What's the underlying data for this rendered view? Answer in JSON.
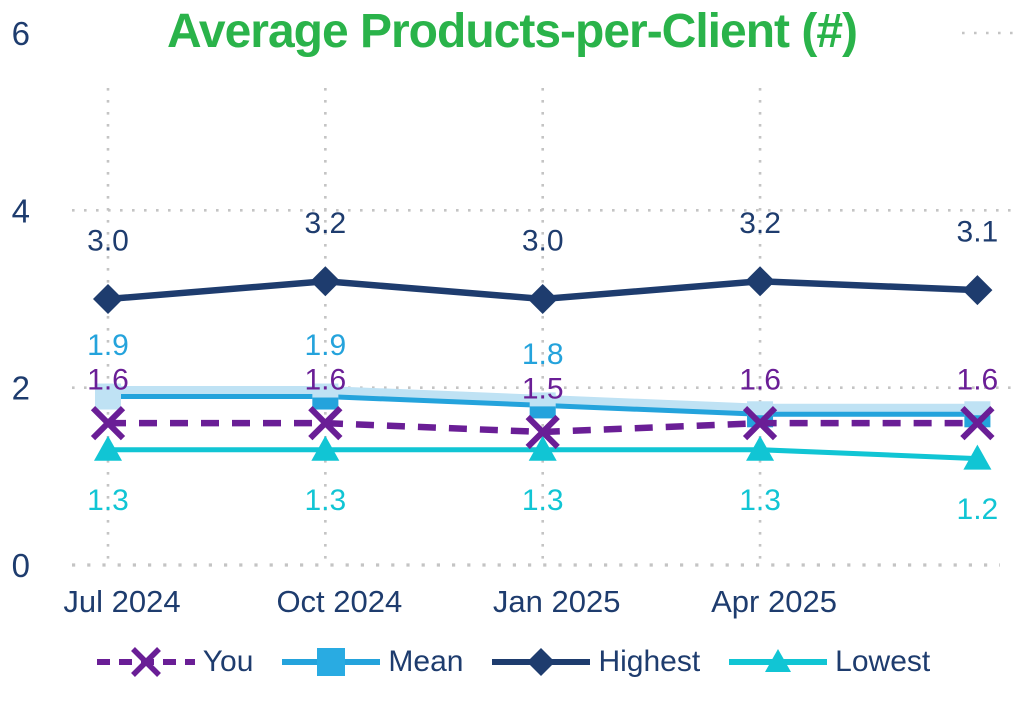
{
  "title": {
    "text": "Average Products-per-Client (#)",
    "color": "#2AB34A"
  },
  "axes": {
    "y_tick_labels": [
      "6",
      "4",
      "2",
      "0"
    ],
    "y_tick_color": "#1E3C6E",
    "x_labels": [
      "Jul 2024",
      "Oct 2024",
      "Jan 2025",
      "Apr 2025"
    ],
    "x_label_color": "#1E3C6E",
    "gridline_color": "#C4C4C4"
  },
  "chart_data": {
    "type": "line",
    "title": "Average Products-per-Client (#)",
    "categories": [
      "Jul 2024",
      "Oct 2024",
      "Jan 2025",
      "Apr 2025",
      ""
    ],
    "ylim": [
      0,
      6
    ],
    "y_ticks": [
      0,
      2,
      4,
      6
    ],
    "grid": "dotted",
    "legend_position": "bottom",
    "series": [
      {
        "name": "You",
        "color": "#6A1E96",
        "line_style": "dashed",
        "marker": "x",
        "values": [
          1.6,
          1.6,
          1.5,
          1.6,
          1.6
        ],
        "data_labels": [
          "1.6",
          "1.6",
          "1.5",
          "1.6",
          "1.6"
        ]
      },
      {
        "name": "Mean",
        "color": "#24A3DC",
        "line_style": "solid",
        "marker": "square",
        "marker_fill": "#BFE2F4",
        "legend_marker_fill": "#29ABE2",
        "values": [
          1.9,
          1.9,
          1.8,
          1.7,
          1.7
        ],
        "data_labels": [
          "1.9",
          "1.9",
          "1.8",
          "",
          ""
        ]
      },
      {
        "name": "Highest",
        "color": "#1E3C6E",
        "line_style": "solid",
        "marker": "diamond",
        "values": [
          3.0,
          3.2,
          3.0,
          3.2,
          3.1
        ],
        "data_labels": [
          "3.0",
          "3.2",
          "3.0",
          "3.2",
          "3.1"
        ]
      },
      {
        "name": "Lowest",
        "color": "#11C5D4",
        "line_style": "solid",
        "marker": "triangle",
        "values": [
          1.3,
          1.3,
          1.3,
          1.3,
          1.2
        ],
        "data_labels": [
          "1.3",
          "1.3",
          "1.3",
          "1.3",
          "1.2"
        ]
      }
    ]
  },
  "legend": {
    "order": [
      "You",
      "Mean",
      "Highest",
      "Lowest"
    ],
    "label_color": "#1E3C6E"
  }
}
